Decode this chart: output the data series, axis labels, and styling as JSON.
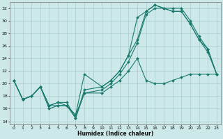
{
  "xlabel": "Humidex (Indice chaleur)",
  "background_color": "#cce8e8",
  "grid_color": "#aacccc",
  "line_color": "#1a7a6e",
  "xlim": [
    -0.5,
    23.5
  ],
  "ylim": [
    13.5,
    33.0
  ],
  "yticks": [
    14,
    16,
    18,
    20,
    22,
    24,
    26,
    28,
    30,
    32
  ],
  "xticks": [
    0,
    1,
    2,
    3,
    4,
    5,
    6,
    7,
    8,
    9,
    10,
    11,
    12,
    13,
    14,
    15,
    16,
    17,
    18,
    19,
    20,
    21,
    22,
    23
  ],
  "lines": [
    {
      "x": [
        0,
        1,
        2,
        3,
        4,
        5,
        6,
        7,
        8,
        10,
        11,
        12,
        13,
        14,
        15,
        16,
        17,
        18,
        19,
        20,
        21,
        22,
        23
      ],
      "y": [
        20.5,
        17.5,
        18.0,
        19.5,
        16.5,
        17.0,
        17.0,
        14.5,
        19.0,
        19.5,
        20.5,
        22.0,
        24.5,
        30.5,
        31.5,
        32.5,
        32.0,
        31.5,
        31.5,
        29.5,
        27.0,
        25.5,
        21.5
      ]
    },
    {
      "x": [
        0,
        1,
        2,
        3,
        4,
        5,
        6,
        7,
        8,
        10,
        11,
        12,
        13,
        14,
        15,
        16,
        17,
        18,
        19,
        20,
        21,
        22,
        23
      ],
      "y": [
        20.5,
        17.5,
        18.0,
        19.5,
        16.5,
        16.5,
        16.5,
        15.0,
        18.5,
        19.0,
        20.0,
        21.5,
        23.5,
        26.5,
        31.0,
        32.0,
        32.0,
        31.5,
        31.5,
        29.5,
        27.0,
        25.0,
        21.5
      ]
    },
    {
      "x": [
        0,
        1,
        2,
        3,
        4,
        5,
        6,
        7,
        8,
        10,
        11,
        12,
        13,
        14,
        15,
        16,
        17,
        18,
        19,
        20,
        21,
        22,
        23
      ],
      "y": [
        20.5,
        17.5,
        18.0,
        19.5,
        16.0,
        16.5,
        16.5,
        15.0,
        21.5,
        19.5,
        20.5,
        22.0,
        24.5,
        27.0,
        31.5,
        32.5,
        32.0,
        32.0,
        32.0,
        30.0,
        27.5,
        25.5,
        21.5
      ]
    },
    {
      "x": [
        0,
        1,
        2,
        3,
        4,
        5,
        6,
        7,
        8,
        10,
        11,
        12,
        13,
        14,
        15,
        16,
        17,
        18,
        19,
        20,
        21,
        22,
        23
      ],
      "y": [
        20.5,
        17.5,
        18.0,
        19.5,
        16.5,
        17.0,
        16.5,
        14.5,
        18.5,
        18.5,
        19.5,
        20.5,
        22.0,
        24.0,
        20.5,
        20.0,
        20.0,
        20.5,
        21.0,
        21.5,
        21.5,
        21.5,
        21.5
      ]
    }
  ]
}
